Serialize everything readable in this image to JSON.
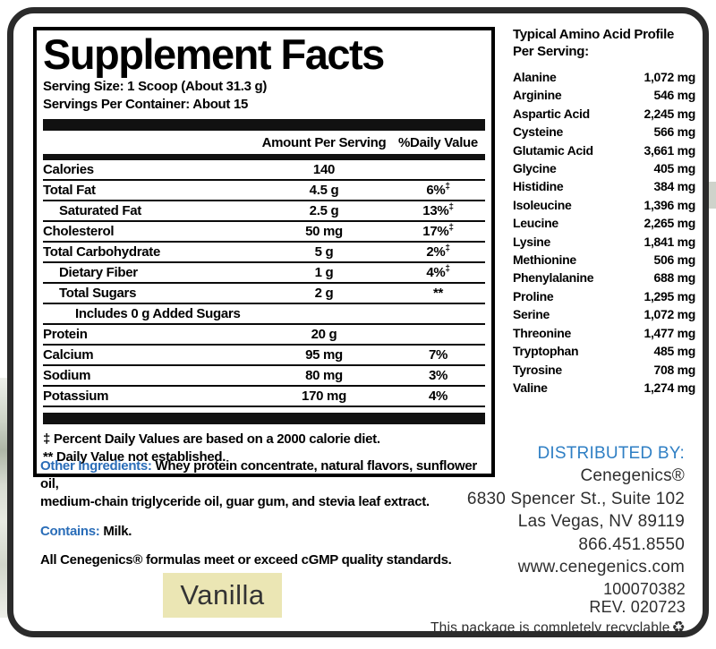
{
  "label": {
    "title": "Supplement Facts",
    "serving_size": "Serving Size: 1 Scoop (About 31.3 g)",
    "servings_per_container": "Servings Per Container: About 15",
    "columns": {
      "amount": "Amount Per Serving",
      "daily_value": "%Daily Value"
    },
    "rows": [
      {
        "name": "Calories",
        "amount": "140",
        "dv": "",
        "sup": "",
        "indent": 0
      },
      {
        "name": "Total Fat",
        "amount": "4.5 g",
        "dv": "6%",
        "sup": "‡",
        "indent": 0
      },
      {
        "name": "Saturated Fat",
        "amount": "2.5 g",
        "dv": "13%",
        "sup": "‡",
        "indent": 1
      },
      {
        "name": "Cholesterol",
        "amount": "50 mg",
        "dv": "17%",
        "sup": "‡",
        "indent": 0
      },
      {
        "name": "Total Carbohydrate",
        "amount": "5 g",
        "dv": "2%",
        "sup": "‡",
        "indent": 0
      },
      {
        "name": "Dietary Fiber",
        "amount": "1 g",
        "dv": "4%",
        "sup": "‡",
        "indent": 1
      },
      {
        "name": "Total Sugars",
        "amount": "2 g",
        "dv": "**",
        "sup": "",
        "indent": 1
      },
      {
        "name": "Includes 0 g Added Sugars",
        "amount": "",
        "dv": "",
        "sup": "",
        "indent": 2
      },
      {
        "name": "Protein",
        "amount": "20 g",
        "dv": "",
        "sup": "",
        "indent": 0
      },
      {
        "name": "Calcium",
        "amount": "95 mg",
        "dv": "7%",
        "sup": "",
        "indent": 0
      },
      {
        "name": "Sodium",
        "amount": "80 mg",
        "dv": "3%",
        "sup": "",
        "indent": 0
      },
      {
        "name": "Potassium",
        "amount": "170 mg",
        "dv": "4%",
        "sup": "",
        "indent": 0
      }
    ],
    "footnote1": "‡ Percent Daily Values are based on a 2000 calorie diet.",
    "footnote2": "** Daily Value not established."
  },
  "amino": {
    "title_line1": "Typical Amino Acid Profile",
    "title_line2": "Per Serving:",
    "rows": [
      {
        "name": "Alanine",
        "value": "1,072 mg"
      },
      {
        "name": "Arginine",
        "value": "546 mg"
      },
      {
        "name": "Aspartic Acid",
        "value": "2,245 mg"
      },
      {
        "name": "Cysteine",
        "value": "566 mg"
      },
      {
        "name": "Glutamic Acid",
        "value": "3,661 mg"
      },
      {
        "name": "Glycine",
        "value": "405 mg"
      },
      {
        "name": "Histidine",
        "value": "384 mg"
      },
      {
        "name": "Isoleucine",
        "value": "1,396 mg"
      },
      {
        "name": "Leucine",
        "value": "2,265 mg"
      },
      {
        "name": "Lysine",
        "value": "1,841 mg"
      },
      {
        "name": "Methionine",
        "value": "506 mg"
      },
      {
        "name": "Phenylalanine",
        "value": "688 mg"
      },
      {
        "name": "Proline",
        "value": "1,295 mg"
      },
      {
        "name": "Serine",
        "value": "1,072 mg"
      },
      {
        "name": "Threonine",
        "value": "1,477 mg"
      },
      {
        "name": "Tryptophan",
        "value": "485 mg"
      },
      {
        "name": "Tyrosine",
        "value": "708 mg"
      },
      {
        "name": "Valine",
        "value": "1,274 mg"
      }
    ]
  },
  "ingredients": {
    "other_label": "Other Ingredients:",
    "other_line1": " Whey protein concentrate, natural flavors, sunflower oil,",
    "other_line2": "medium-chain triglyceride oil, guar gum, and stevia leaf extract.",
    "contains_label": "Contains:",
    "contains_value": " Milk.",
    "cgmp_statement": "All Cenegenics® formulas meet or exceed cGMP quality standards."
  },
  "distributor": {
    "heading": "DISTRIBUTED BY:",
    "lines": [
      "Cenegenics®",
      "6830 Spencer St., Suite 102",
      "Las Vegas, NV 89119",
      "866.451.8550",
      "www.cenegenics.com"
    ]
  },
  "flavor": {
    "name": "Vanilla",
    "swatch_color": "#ebe6b4"
  },
  "footer": {
    "part_number": "100070382",
    "revision": "REV. 020723",
    "recyclable_text": "This package is completely recyclable",
    "recycle_icon": "♻"
  },
  "colors": {
    "ingredients_label_blue": "#2a6db8",
    "distributor_blue": "#2f7fc4",
    "border_black": "#2b2b2b"
  }
}
